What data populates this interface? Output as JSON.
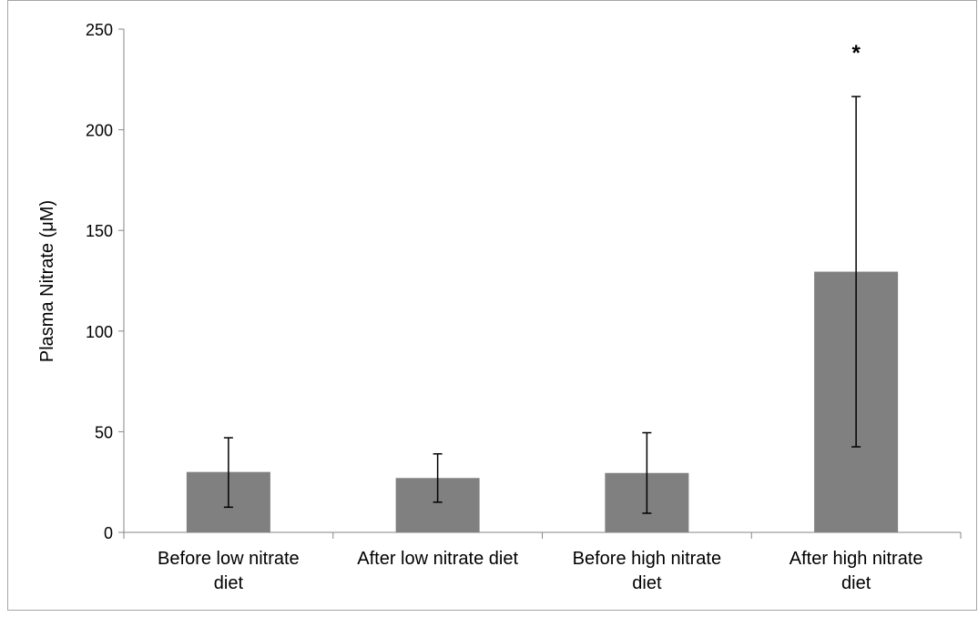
{
  "chart_data": {
    "type": "bar",
    "title": "",
    "xlabel": "",
    "ylabel": "Plasma Nitrate (μM)",
    "ylim": [
      0,
      250
    ],
    "yticks": [
      0,
      50,
      100,
      150,
      200,
      250
    ],
    "grid": false,
    "legend": "none",
    "bar_color": "#808080",
    "categories": [
      [
        "Before low nitrate",
        "diet"
      ],
      [
        "After low nitrate diet"
      ],
      [
        "Before high nitrate",
        "diet"
      ],
      [
        "After high nitrate",
        "diet"
      ]
    ],
    "values": [
      30,
      27,
      29.5,
      129.5
    ],
    "error_low": [
      12.5,
      15,
      9.5,
      42.5
    ],
    "error_high": [
      47,
      39,
      49.5,
      216.5
    ],
    "annotations": [
      {
        "category_index": 3,
        "text": "*",
        "y": 240
      }
    ]
  }
}
